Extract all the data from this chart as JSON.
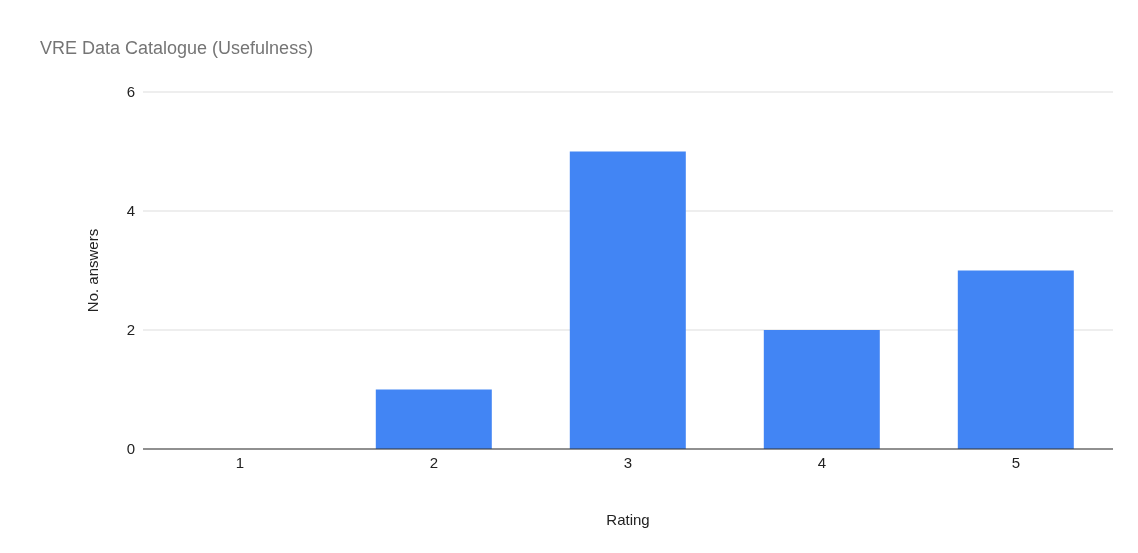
{
  "chart_data": {
    "type": "bar",
    "title": "VRE Data Catalogue (Usefulness)",
    "xlabel": "Rating",
    "ylabel": "No. answers",
    "categories": [
      "1",
      "2",
      "3",
      "4",
      "5"
    ],
    "values": [
      0,
      1,
      5,
      2,
      3
    ],
    "color": "#4285f4",
    "ylim": [
      0,
      6
    ],
    "yticks": [
      0,
      2,
      4,
      6
    ],
    "grid": "y"
  }
}
